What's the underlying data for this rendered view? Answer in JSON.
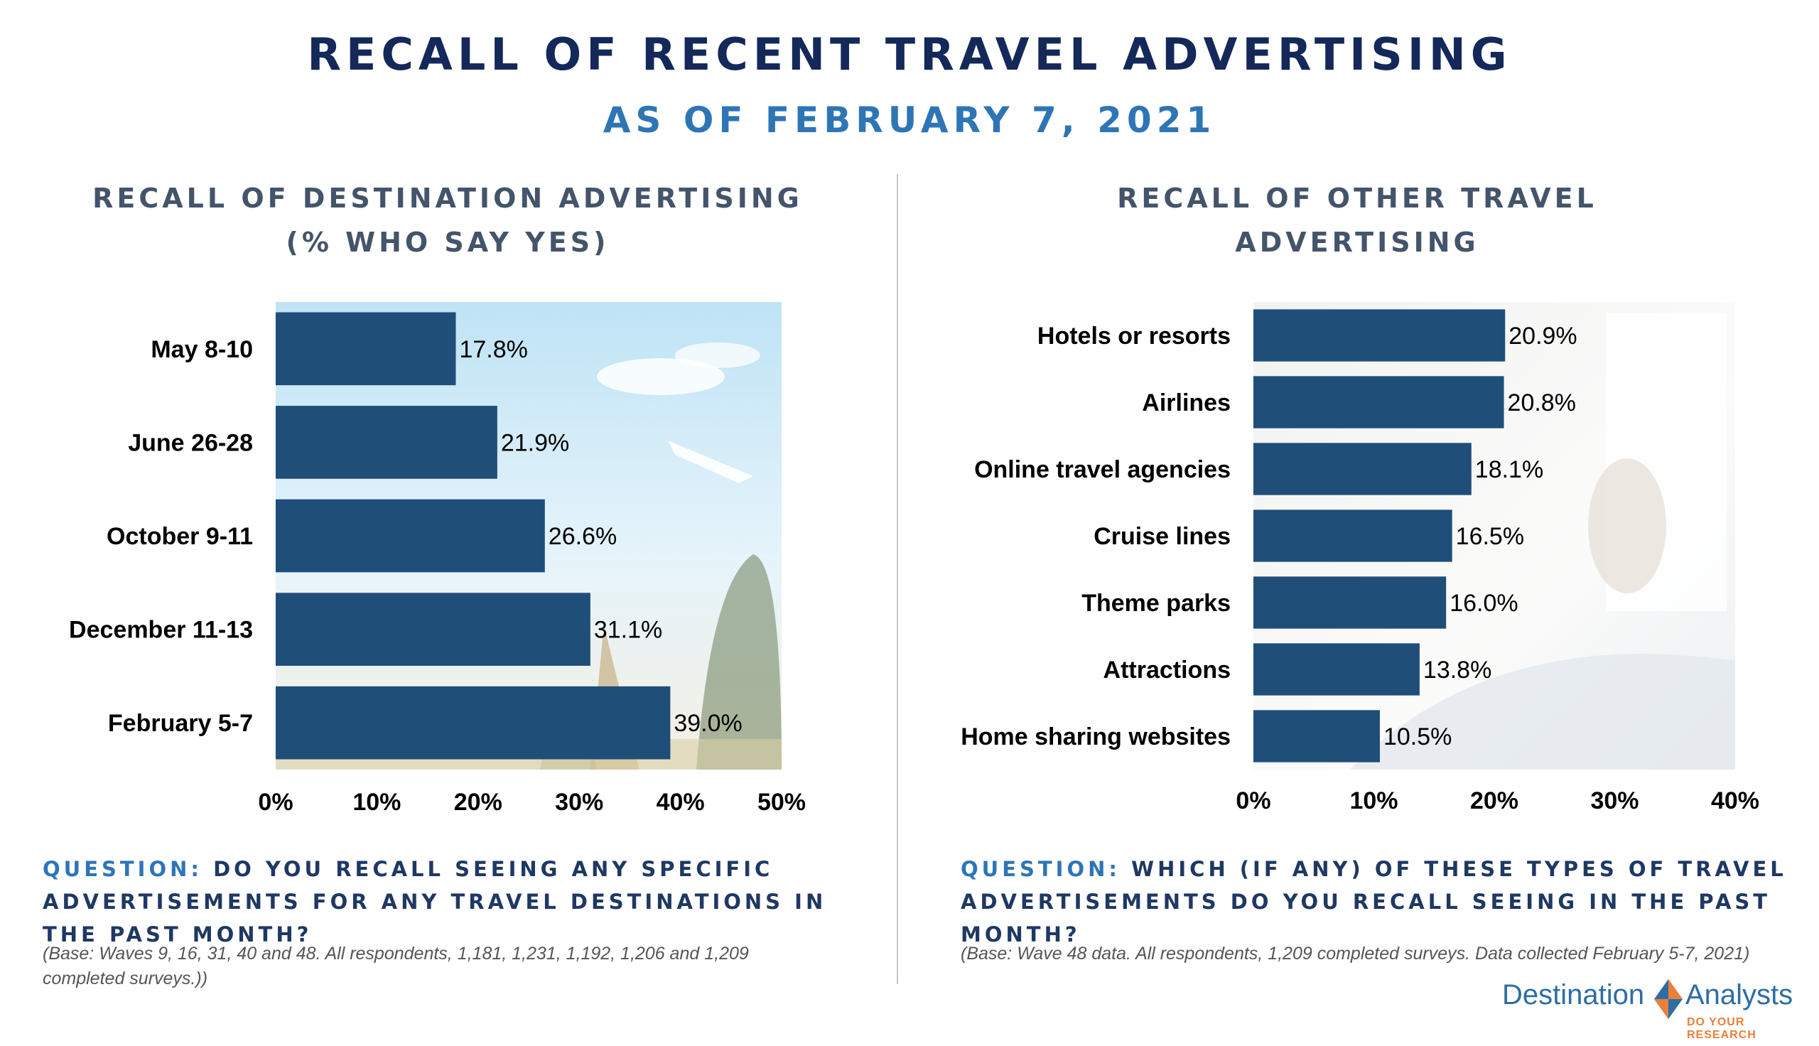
{
  "header": {
    "title": "RECALL OF RECENT TRAVEL ADVERTISING",
    "subtitle": "AS OF FEBRUARY 7, 2021"
  },
  "left_panel": {
    "title_line1": "RECALL OF DESTINATION ADVERTISING",
    "title_line2": "(% WHO SAY YES)",
    "question_label": "QUESTION:",
    "question_text": "DO YOU RECALL SEEING ANY SPECIFIC ADVERTISEMENTS FOR ANY TRAVEL DESTINATIONS IN THE PAST MONTH?",
    "base_note": "(Base: Waves 9, 16, 31, 40 and 48. All respondents, 1,181, 1,231, 1,192, 1,206 and 1,209 completed surveys.))"
  },
  "right_panel": {
    "title_line1": "RECALL OF OTHER TRAVEL",
    "title_line2": "ADVERTISING",
    "question_label": "QUESTION:",
    "question_text": "WHICH (IF ANY) OF THESE TYPES OF TRAVEL ADVERTISEMENTS DO YOU RECALL SEEING IN THE PAST MONTH?",
    "base_note": "(Base: Wave 48 data. All respondents, 1,209 completed surveys. Data collected February 5-7, 2021)"
  },
  "logo": {
    "left_word": "Destination",
    "right_word": "Analysts",
    "tagline": "DO YOUR RESEARCH"
  },
  "colors": {
    "bar": "#1f4e79",
    "title": "#14285a",
    "subtitle": "#2e75b6",
    "chart_title": "#44546a",
    "logo_blue": "#2e6da4",
    "logo_orange": "#e8803a"
  },
  "chart_data": [
    {
      "type": "bar",
      "orientation": "horizontal",
      "title": "RECALL OF DESTINATION ADVERTISING (% WHO SAY YES)",
      "categories": [
        "May 8-10",
        "June 26-28",
        "October 9-11",
        "December 11-13",
        "February 5-7"
      ],
      "values": [
        17.8,
        21.9,
        26.6,
        31.1,
        39.0
      ],
      "value_labels": [
        "17.8%",
        "21.9%",
        "26.6%",
        "31.1%",
        "39.0%"
      ],
      "xlim": [
        0,
        50
      ],
      "ticks": [
        0,
        10,
        20,
        30,
        40,
        50
      ],
      "tick_labels": [
        "0%",
        "10%",
        "20%",
        "30%",
        "40%",
        "50%"
      ],
      "background": "travel-destinations-photo"
    },
    {
      "type": "bar",
      "orientation": "horizontal",
      "title": "RECALL OF OTHER TRAVEL ADVERTISING",
      "categories": [
        "Hotels or resorts",
        "Airlines",
        "Online travel agencies",
        "Cruise lines",
        "Theme parks",
        "Attractions",
        "Home sharing websites"
      ],
      "values": [
        20.9,
        20.8,
        18.1,
        16.5,
        16.0,
        13.8,
        10.5
      ],
      "value_labels": [
        "20.9%",
        "20.8%",
        "18.1%",
        "16.5%",
        "16.0%",
        "13.8%",
        "10.5%"
      ],
      "xlim": [
        0,
        40
      ],
      "ticks": [
        0,
        10,
        20,
        30,
        40
      ],
      "tick_labels": [
        "0%",
        "10%",
        "20%",
        "30%",
        "40%"
      ],
      "background": "bedroom-morning-photo"
    }
  ]
}
